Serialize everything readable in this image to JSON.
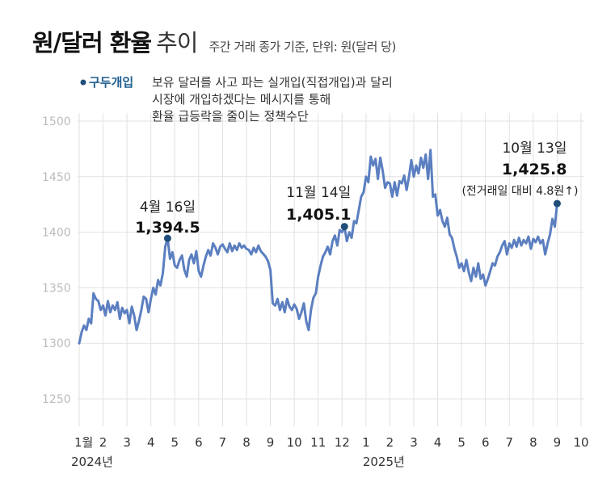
{
  "header": {
    "title_bold": "원/달러 환율",
    "title_light": "추이",
    "subtitle": "주간 거래 종가 기준, 단위: 원(달러 당)"
  },
  "colors": {
    "line": "#5b7fc0",
    "marker": "#1f4e7a",
    "grid": "#e2e2e2"
  },
  "chart_data": {
    "type": "line",
    "ylim": [
      1250,
      1500
    ],
    "yticks": [
      "1500",
      "1450",
      "1400",
      "1350",
      "1300",
      "1250"
    ],
    "x_labels": [
      "1월",
      "2",
      "3",
      "4",
      "5",
      "6",
      "7",
      "8",
      "9",
      "10",
      "11",
      "12",
      "1",
      "2",
      "3",
      "4",
      "5",
      "6",
      "7",
      "8",
      "9",
      "10"
    ],
    "year_labels": [
      "2024년",
      "2025년"
    ],
    "legend": {
      "key": "구두개입",
      "lines": [
        "보유 달러를 사고 파는 실개입(직접개입)과 달리",
        "시장에 개입하겠다는 메시지를 통해",
        "환율 급등락을 줄이는 정책수단"
      ]
    },
    "series": [
      {
        "points": [
          [
            0.0,
            1300
          ],
          [
            0.1,
            1310
          ],
          [
            0.2,
            1316
          ],
          [
            0.3,
            1312
          ],
          [
            0.4,
            1322
          ],
          [
            0.5,
            1318
          ],
          [
            0.6,
            1345
          ],
          [
            0.7,
            1340
          ],
          [
            0.8,
            1338
          ],
          [
            0.9,
            1330
          ],
          [
            1.0,
            1334
          ],
          [
            1.1,
            1325
          ],
          [
            1.2,
            1338
          ],
          [
            1.3,
            1328
          ],
          [
            1.4,
            1334
          ],
          [
            1.5,
            1330
          ],
          [
            1.6,
            1337
          ],
          [
            1.7,
            1322
          ],
          [
            1.8,
            1332
          ],
          [
            1.9,
            1327
          ],
          [
            2.0,
            1330
          ],
          [
            2.1,
            1318
          ],
          [
            2.2,
            1333
          ],
          [
            2.3,
            1325
          ],
          [
            2.4,
            1312
          ],
          [
            2.5,
            1320
          ],
          [
            2.6,
            1330
          ],
          [
            2.7,
            1342
          ],
          [
            2.8,
            1340
          ],
          [
            2.9,
            1328
          ],
          [
            3.0,
            1340
          ],
          [
            3.1,
            1350
          ],
          [
            3.2,
            1344
          ],
          [
            3.3,
            1357
          ],
          [
            3.4,
            1352
          ],
          [
            3.5,
            1363
          ],
          [
            3.6,
            1387
          ],
          [
            3.7,
            1394.5
          ],
          [
            3.8,
            1376
          ],
          [
            3.9,
            1382
          ],
          [
            4.0,
            1370
          ],
          [
            4.1,
            1368
          ],
          [
            4.2,
            1375
          ],
          [
            4.3,
            1379
          ],
          [
            4.4,
            1366
          ],
          [
            4.5,
            1360
          ],
          [
            4.6,
            1375
          ],
          [
            4.7,
            1380
          ],
          [
            4.8,
            1372
          ],
          [
            4.9,
            1383
          ],
          [
            5.0,
            1365
          ],
          [
            5.1,
            1360
          ],
          [
            5.2,
            1370
          ],
          [
            5.3,
            1378
          ],
          [
            5.4,
            1384
          ],
          [
            5.5,
            1379
          ],
          [
            5.6,
            1390
          ],
          [
            5.7,
            1386
          ],
          [
            5.8,
            1380
          ],
          [
            5.9,
            1387
          ],
          [
            6.0,
            1389
          ],
          [
            6.1,
            1385
          ],
          [
            6.2,
            1382
          ],
          [
            6.3,
            1390
          ],
          [
            6.4,
            1383
          ],
          [
            6.5,
            1388
          ],
          [
            6.6,
            1384
          ],
          [
            6.7,
            1390
          ],
          [
            6.8,
            1386
          ],
          [
            6.9,
            1388
          ],
          [
            7.0,
            1385
          ],
          [
            7.1,
            1384
          ],
          [
            7.2,
            1380
          ],
          [
            7.3,
            1386
          ],
          [
            7.4,
            1382
          ],
          [
            7.5,
            1388
          ],
          [
            7.6,
            1383
          ],
          [
            7.8,
            1378
          ],
          [
            7.9,
            1374
          ],
          [
            8.0,
            1366
          ],
          [
            8.1,
            1336
          ],
          [
            8.2,
            1334
          ],
          [
            8.3,
            1340
          ],
          [
            8.4,
            1330
          ],
          [
            8.5,
            1337
          ],
          [
            8.6,
            1328
          ],
          [
            8.7,
            1340
          ],
          [
            8.8,
            1333
          ],
          [
            8.9,
            1330
          ],
          [
            9.0,
            1335
          ],
          [
            9.1,
            1331
          ],
          [
            9.2,
            1322
          ],
          [
            9.3,
            1328
          ],
          [
            9.4,
            1336
          ],
          [
            9.5,
            1320
          ],
          [
            9.6,
            1312
          ],
          [
            9.7,
            1330
          ],
          [
            9.8,
            1341
          ],
          [
            9.9,
            1345
          ],
          [
            10.0,
            1360
          ],
          [
            10.1,
            1370
          ],
          [
            10.2,
            1378
          ],
          [
            10.3,
            1382
          ],
          [
            10.4,
            1387
          ],
          [
            10.5,
            1380
          ],
          [
            10.6,
            1392
          ],
          [
            10.7,
            1397
          ],
          [
            10.8,
            1388
          ],
          [
            10.9,
            1402
          ],
          [
            11.0,
            1400
          ],
          [
            11.1,
            1405.1
          ],
          [
            11.2,
            1392
          ],
          [
            11.3,
            1400
          ],
          [
            11.4,
            1395
          ],
          [
            11.5,
            1410
          ],
          [
            11.6,
            1408
          ],
          [
            11.7,
            1420
          ],
          [
            11.8,
            1432
          ],
          [
            11.9,
            1436
          ],
          [
            12.0,
            1450
          ],
          [
            12.1,
            1445
          ],
          [
            12.2,
            1468
          ],
          [
            12.3,
            1460
          ],
          [
            12.4,
            1466
          ],
          [
            12.5,
            1448
          ],
          [
            12.6,
            1467
          ],
          [
            12.7,
            1455
          ],
          [
            12.8,
            1440
          ],
          [
            12.9,
            1445
          ],
          [
            13.0,
            1444
          ],
          [
            13.1,
            1432
          ],
          [
            13.2,
            1445
          ],
          [
            13.3,
            1433
          ],
          [
            13.4,
            1446
          ],
          [
            13.5,
            1444
          ],
          [
            13.6,
            1451
          ],
          [
            13.7,
            1438
          ],
          [
            13.8,
            1450
          ],
          [
            13.9,
            1465
          ],
          [
            14.0,
            1450
          ],
          [
            14.1,
            1460
          ],
          [
            14.2,
            1453
          ],
          [
            14.3,
            1467
          ],
          [
            14.4,
            1458
          ],
          [
            14.5,
            1470
          ],
          [
            14.6,
            1448
          ],
          [
            14.7,
            1474
          ],
          [
            14.8,
            1432
          ],
          [
            14.9,
            1434
          ],
          [
            15.0,
            1415
          ],
          [
            15.1,
            1420
          ],
          [
            15.2,
            1410
          ],
          [
            15.3,
            1405
          ],
          [
            15.4,
            1413
          ],
          [
            15.5,
            1398
          ],
          [
            15.6,
            1395
          ],
          [
            15.7,
            1385
          ],
          [
            15.8,
            1378
          ],
          [
            15.9,
            1368
          ],
          [
            16.0,
            1372
          ],
          [
            16.1,
            1365
          ],
          [
            16.2,
            1375
          ],
          [
            16.3,
            1364
          ],
          [
            16.4,
            1356
          ],
          [
            16.5,
            1368
          ],
          [
            16.6,
            1360
          ],
          [
            16.7,
            1372
          ],
          [
            16.8,
            1358
          ],
          [
            16.9,
            1362
          ],
          [
            17.0,
            1352
          ],
          [
            17.1,
            1358
          ],
          [
            17.2,
            1365
          ],
          [
            17.3,
            1372
          ],
          [
            17.4,
            1370
          ],
          [
            17.5,
            1378
          ],
          [
            17.6,
            1382
          ],
          [
            17.7,
            1388
          ],
          [
            17.8,
            1392
          ],
          [
            17.9,
            1380
          ],
          [
            18.0,
            1390
          ],
          [
            18.1,
            1386
          ],
          [
            18.2,
            1393
          ],
          [
            18.3,
            1387
          ],
          [
            18.4,
            1395
          ],
          [
            18.5,
            1388
          ],
          [
            18.6,
            1393
          ],
          [
            18.7,
            1390
          ],
          [
            18.8,
            1396
          ],
          [
            18.9,
            1385
          ],
          [
            19.0,
            1394
          ],
          [
            19.1,
            1391
          ],
          [
            19.2,
            1396
          ],
          [
            19.3,
            1390
          ],
          [
            19.4,
            1393
          ],
          [
            19.5,
            1380
          ],
          [
            19.6,
            1390
          ],
          [
            19.7,
            1398
          ],
          [
            19.8,
            1412
          ],
          [
            19.9,
            1405
          ],
          [
            20.0,
            1425.8
          ]
        ]
      }
    ],
    "annotations": [
      {
        "date": "4월 16일",
        "value": "1,394.5",
        "x": 3.7,
        "y": 1394.5
      },
      {
        "date": "11월 14일",
        "value": "1,405.1",
        "x": 11.1,
        "y": 1405.1
      },
      {
        "date": "10월 13일",
        "value": "1,425.8",
        "note": "(전거래일 대비 4.8원↑)",
        "x": 20.0,
        "y": 1425.8
      }
    ]
  }
}
